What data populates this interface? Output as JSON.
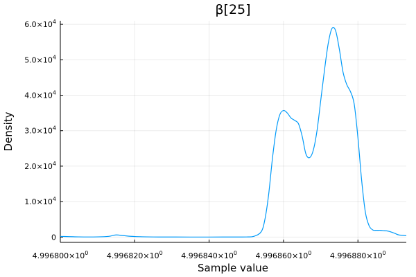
{
  "chart_data": {
    "type": "line",
    "title": "β[25]",
    "xlabel": "Sample value",
    "ylabel": "Density",
    "xlim": [
      4.9968,
      4.996893
    ],
    "ylim": [
      -1500,
      61000
    ],
    "grid": true,
    "legend": "none",
    "x_ticks": [
      {
        "value": 4.9968,
        "label": "4.996800×10",
        "exp": "0"
      },
      {
        "value": 4.99682,
        "label": "4.996820×10",
        "exp": "0"
      },
      {
        "value": 4.99684,
        "label": "4.996840×10",
        "exp": "0"
      },
      {
        "value": 4.99686,
        "label": "4.996860×10",
        "exp": "0"
      },
      {
        "value": 4.99688,
        "label": "4.996880×10",
        "exp": "0"
      }
    ],
    "y_ticks": [
      {
        "value": 0,
        "label": "0",
        "exp": ""
      },
      {
        "value": 10000,
        "label": "1.0×10",
        "exp": "4"
      },
      {
        "value": 20000,
        "label": "2.0×10",
        "exp": "4"
      },
      {
        "value": 30000,
        "label": "3.0×10",
        "exp": "4"
      },
      {
        "value": 40000,
        "label": "4.0×10",
        "exp": "4"
      },
      {
        "value": 50000,
        "label": "5.0×10",
        "exp": "4"
      },
      {
        "value": 60000,
        "label": "6.0×10",
        "exp": "4"
      }
    ],
    "series": [
      {
        "color": "#009af9",
        "x": [
          4.9968,
          4.996805,
          4.99681,
          4.996813,
          4.996815,
          4.996817,
          4.99682,
          4.996825,
          4.99683,
          4.99684,
          4.996845,
          4.99685,
          4.996852,
          4.996854,
          4.996855,
          4.996856,
          4.996857,
          4.996858,
          4.996859,
          4.99686,
          4.996861,
          4.996862,
          4.996863,
          4.996864,
          4.996865,
          4.996866,
          4.996867,
          4.996868,
          4.996869,
          4.99687,
          4.996871,
          4.996872,
          4.996873,
          4.996874,
          4.996875,
          4.996876,
          4.996877,
          4.996878,
          4.996879,
          4.99688,
          4.996881,
          4.996882,
          4.996883,
          4.996884,
          4.996885,
          4.996886,
          4.996887,
          4.996888,
          4.996889,
          4.99689,
          4.996891,
          4.996893
        ],
        "y": [
          200,
          50,
          50,
          200,
          600,
          400,
          150,
          30,
          10,
          5,
          10,
          30,
          200,
          1500,
          5000,
          12000,
          22000,
          30000,
          34500,
          35700,
          35000,
          33600,
          32900,
          32000,
          28500,
          23500,
          22400,
          24500,
          30000,
          38500,
          47000,
          54500,
          58800,
          58200,
          53000,
          46500,
          43000,
          41000,
          37500,
          28000,
          16000,
          7000,
          3200,
          2000,
          1900,
          1900,
          1800,
          1700,
          1400,
          1000,
          600,
          400
        ]
      }
    ]
  }
}
